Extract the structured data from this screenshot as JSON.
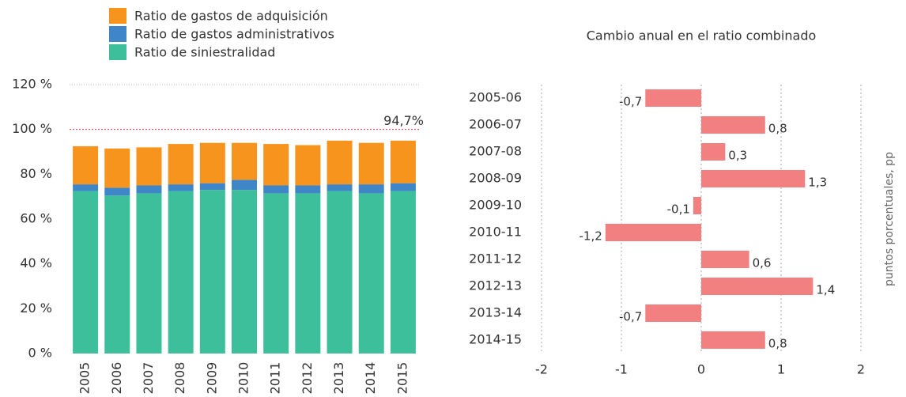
{
  "chart_data": [
    {
      "type": "bar",
      "stacked": true,
      "categories": [
        "2005",
        "2006",
        "2007",
        "2008",
        "2009",
        "2010",
        "2011",
        "2012",
        "2013",
        "2014",
        "2015"
      ],
      "series": [
        {
          "name": "Ratio de siniestralidad",
          "color": "#3dbf9b",
          "values": [
            72.5,
            70.5,
            71.5,
            72.5,
            73,
            73,
            71.5,
            71.5,
            72.5,
            71.5,
            72.5
          ]
        },
        {
          "name": "Ratio de gastos administrativos",
          "color": "#3f86c9",
          "values": [
            3,
            3.5,
            3.5,
            3,
            3,
            4.5,
            3.5,
            3.5,
            3,
            4,
            3.5
          ]
        },
        {
          "name": "Ratio de gastos de adquisición",
          "color": "#f7941d",
          "values": [
            17,
            17.5,
            17,
            18,
            18,
            16.5,
            18.5,
            18,
            19.5,
            18.5,
            19
          ]
        }
      ],
      "ylim": [
        0,
        120
      ],
      "yticks": [
        {
          "value": 0,
          "label": "0 %"
        },
        {
          "value": 20,
          "label": "20 %"
        },
        {
          "value": 40,
          "label": "40 %"
        },
        {
          "value": 60,
          "label": "60 %"
        },
        {
          "value": 80,
          "label": "80 %"
        },
        {
          "value": 100,
          "label": "100 %"
        },
        {
          "value": 120,
          "label": "120 %"
        }
      ],
      "reference_line": {
        "value": 100,
        "color": "#e0323c"
      },
      "annotation": "94,7%"
    },
    {
      "type": "barh",
      "title": "Cambio anual en el ratio combinado",
      "axis_label": "puntos porcentuales, pp",
      "categories": [
        "2005-06",
        "2006-07",
        "2007-08",
        "2008-09",
        "2009-10",
        "2010-11",
        "2011-12",
        "2012-13",
        "2013-14",
        "2014-15"
      ],
      "values": [
        -0.7,
        0.8,
        0.3,
        1.3,
        -0.1,
        -1.2,
        0.6,
        1.4,
        -0.7,
        0.8
      ],
      "value_labels": [
        "-0,7",
        "0,8",
        "0,3",
        "1,3",
        "-0,1",
        "-1,2",
        "0,6",
        "1,4",
        "-0,7",
        "0,8"
      ],
      "color": "#f28080",
      "xlim": [
        -2,
        2
      ],
      "xticks": [
        -2,
        -1,
        0,
        1,
        2
      ],
      "grid": true
    }
  ]
}
